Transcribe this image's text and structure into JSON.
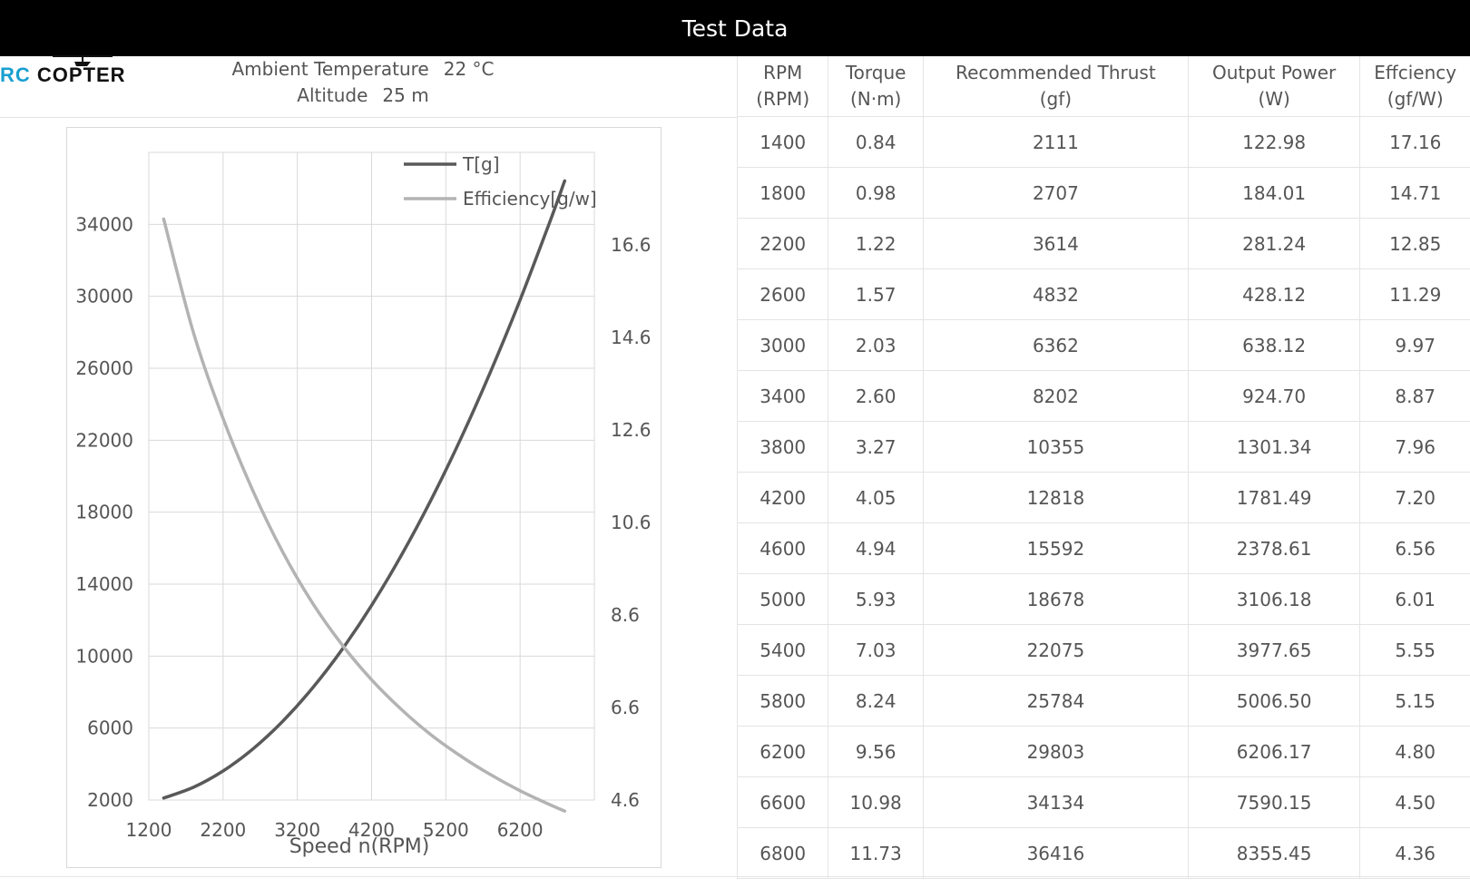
{
  "header": {
    "title": "Test Data"
  },
  "logo": {
    "text_rc": "RC",
    "text_main": " COPTER",
    "icon": "helicopter-icon"
  },
  "conditions": {
    "temperature_label": "Ambient Temperature",
    "temperature_value": "22 °C",
    "altitude_label": "Altitude",
    "altitude_value": "25 m"
  },
  "table": {
    "columns": [
      {
        "name": "RPM",
        "unit": "(RPM)"
      },
      {
        "name": "Torque",
        "unit": "(N·m)"
      },
      {
        "name": "Recommended Thrust",
        "unit": "(gf)"
      },
      {
        "name": "Output Power",
        "unit": "(W)"
      },
      {
        "name": "Effciency",
        "unit": "(gf/W)"
      }
    ],
    "rows": [
      [
        "1400",
        "0.84",
        "2111",
        "122.98",
        "17.16"
      ],
      [
        "1800",
        "0.98",
        "2707",
        "184.01",
        "14.71"
      ],
      [
        "2200",
        "1.22",
        "3614",
        "281.24",
        "12.85"
      ],
      [
        "2600",
        "1.57",
        "4832",
        "428.12",
        "11.29"
      ],
      [
        "3000",
        "2.03",
        "6362",
        "638.12",
        "9.97"
      ],
      [
        "3400",
        "2.60",
        "8202",
        "924.70",
        "8.87"
      ],
      [
        "3800",
        "3.27",
        "10355",
        "1301.34",
        "7.96"
      ],
      [
        "4200",
        "4.05",
        "12818",
        "1781.49",
        "7.20"
      ],
      [
        "4600",
        "4.94",
        "15592",
        "2378.61",
        "6.56"
      ],
      [
        "5000",
        "5.93",
        "18678",
        "3106.18",
        "6.01"
      ],
      [
        "5400",
        "7.03",
        "22075",
        "3977.65",
        "5.55"
      ],
      [
        "5800",
        "8.24",
        "25784",
        "5006.50",
        "5.15"
      ],
      [
        "6200",
        "9.56",
        "29803",
        "6206.17",
        "4.80"
      ],
      [
        "6600",
        "10.98",
        "34134",
        "7590.15",
        "4.50"
      ],
      [
        "6800",
        "11.73",
        "36416",
        "8355.45",
        "4.36"
      ]
    ]
  },
  "chart_data": {
    "type": "line",
    "title": "",
    "xlabel": "Speed n(RPM)",
    "ylabel": "",
    "y2label": "",
    "xlim": [
      1200,
      7200
    ],
    "ylim": [
      2000,
      38000
    ],
    "y2lim": [
      4.6,
      18.6
    ],
    "x_ticks": [
      1200,
      2200,
      3200,
      4200,
      5200,
      6200
    ],
    "y_ticks": [
      2000,
      6000,
      10000,
      14000,
      18000,
      22000,
      26000,
      30000,
      34000
    ],
    "y2_ticks": [
      "4.6",
      "6.6",
      "8.6",
      "10.6",
      "12.6",
      "14.6",
      "16.6"
    ],
    "grid": true,
    "legend_position": "top-right",
    "x": [
      1400,
      1800,
      2200,
      2600,
      3000,
      3400,
      3800,
      4200,
      4600,
      5000,
      5400,
      5800,
      6200,
      6600,
      6800
    ],
    "series": [
      {
        "name": "T[g]",
        "axis": "left",
        "color": "#595959",
        "values": [
          2111,
          2707,
          3614,
          4832,
          6362,
          8202,
          10355,
          12818,
          15592,
          18678,
          22075,
          25784,
          29803,
          34134,
          36416
        ]
      },
      {
        "name": "Efficiency[g/w]",
        "axis": "right",
        "color": "#b3b3b3",
        "values": [
          17.16,
          14.71,
          12.85,
          11.29,
          9.97,
          8.87,
          7.96,
          7.2,
          6.56,
          6.01,
          5.55,
          5.15,
          4.8,
          4.5,
          4.36
        ]
      }
    ]
  }
}
